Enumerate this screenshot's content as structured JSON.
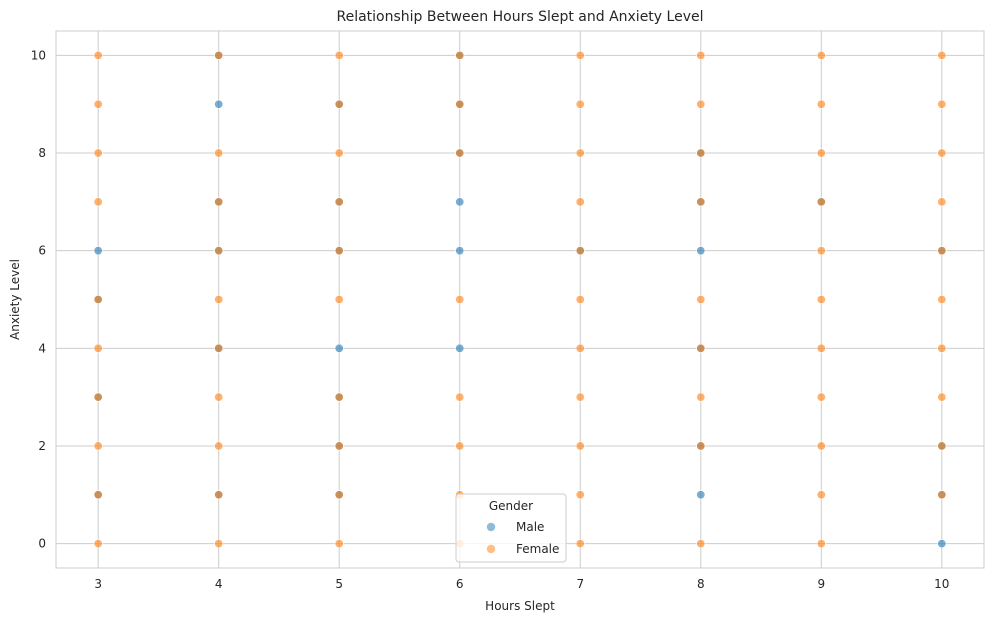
{
  "chart_data": {
    "type": "scatter",
    "title": "Relationship Between Hours Slept and Anxiety Level",
    "xlabel": "Hours Slept",
    "ylabel": "Anxiety Level",
    "xlim": [
      2.65,
      10.35
    ],
    "ylim": [
      -0.5,
      10.5
    ],
    "xticks": [
      3,
      4,
      5,
      6,
      7,
      8,
      9,
      10
    ],
    "yticks": [
      0,
      2,
      4,
      6,
      8,
      10
    ],
    "grid": true,
    "legend": {
      "title": "Gender",
      "position": "bottom-center"
    },
    "series": [
      {
        "name": "Male",
        "color": "#1f77b4",
        "points": [
          [
            3,
            1
          ],
          [
            3,
            3
          ],
          [
            3,
            5
          ],
          [
            3,
            6
          ],
          [
            4,
            1
          ],
          [
            4,
            4
          ],
          [
            4,
            6
          ],
          [
            4,
            7
          ],
          [
            4,
            9
          ],
          [
            4,
            10
          ],
          [
            5,
            1
          ],
          [
            5,
            2
          ],
          [
            5,
            3
          ],
          [
            5,
            4
          ],
          [
            5,
            6
          ],
          [
            5,
            7
          ],
          [
            5,
            9
          ],
          [
            6,
            4
          ],
          [
            6,
            6
          ],
          [
            6,
            7
          ],
          [
            6,
            8
          ],
          [
            6,
            9
          ],
          [
            6,
            10
          ],
          [
            7,
            6
          ],
          [
            8,
            1
          ],
          [
            8,
            2
          ],
          [
            8,
            4
          ],
          [
            8,
            6
          ],
          [
            8,
            7
          ],
          [
            8,
            8
          ],
          [
            9,
            7
          ],
          [
            10,
            0
          ],
          [
            10,
            1
          ],
          [
            10,
            2
          ],
          [
            10,
            6
          ]
        ]
      },
      {
        "name": "Female",
        "color": "#ff7f0e",
        "points": [
          [
            3,
            0
          ],
          [
            3,
            1
          ],
          [
            3,
            2
          ],
          [
            3,
            3
          ],
          [
            3,
            4
          ],
          [
            3,
            5
          ],
          [
            3,
            7
          ],
          [
            3,
            8
          ],
          [
            3,
            9
          ],
          [
            3,
            10
          ],
          [
            4,
            0
          ],
          [
            4,
            1
          ],
          [
            4,
            2
          ],
          [
            4,
            3
          ],
          [
            4,
            4
          ],
          [
            4,
            5
          ],
          [
            4,
            6
          ],
          [
            4,
            7
          ],
          [
            4,
            8
          ],
          [
            4,
            10
          ],
          [
            5,
            0
          ],
          [
            5,
            1
          ],
          [
            5,
            2
          ],
          [
            5,
            3
          ],
          [
            5,
            5
          ],
          [
            5,
            6
          ],
          [
            5,
            7
          ],
          [
            5,
            8
          ],
          [
            5,
            9
          ],
          [
            5,
            10
          ],
          [
            6,
            0
          ],
          [
            6,
            1
          ],
          [
            6,
            2
          ],
          [
            6,
            3
          ],
          [
            6,
            5
          ],
          [
            6,
            8
          ],
          [
            6,
            9
          ],
          [
            6,
            10
          ],
          [
            7,
            0
          ],
          [
            7,
            1
          ],
          [
            7,
            2
          ],
          [
            7,
            3
          ],
          [
            7,
            4
          ],
          [
            7,
            5
          ],
          [
            7,
            6
          ],
          [
            7,
            7
          ],
          [
            7,
            8
          ],
          [
            7,
            9
          ],
          [
            7,
            10
          ],
          [
            8,
            0
          ],
          [
            8,
            2
          ],
          [
            8,
            3
          ],
          [
            8,
            4
          ],
          [
            8,
            5
          ],
          [
            8,
            7
          ],
          [
            8,
            8
          ],
          [
            8,
            9
          ],
          [
            8,
            10
          ],
          [
            9,
            0
          ],
          [
            9,
            1
          ],
          [
            9,
            2
          ],
          [
            9,
            3
          ],
          [
            9,
            4
          ],
          [
            9,
            5
          ],
          [
            9,
            6
          ],
          [
            9,
            7
          ],
          [
            9,
            8
          ],
          [
            9,
            9
          ],
          [
            9,
            10
          ],
          [
            10,
            1
          ],
          [
            10,
            2
          ],
          [
            10,
            3
          ],
          [
            10,
            4
          ],
          [
            10,
            5
          ],
          [
            10,
            6
          ],
          [
            10,
            7
          ],
          [
            10,
            8
          ],
          [
            10,
            9
          ],
          [
            10,
            10
          ]
        ]
      }
    ]
  }
}
